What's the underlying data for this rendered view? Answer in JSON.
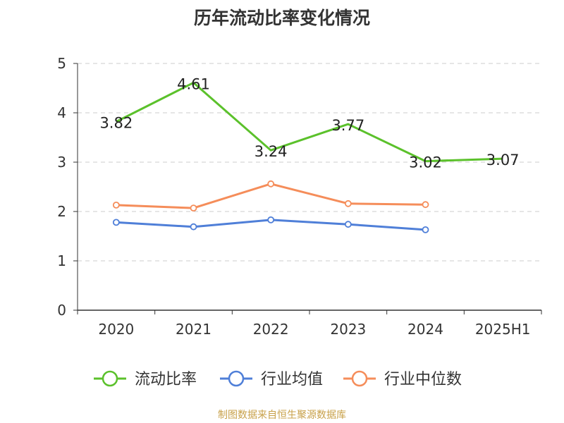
{
  "title": "历年流动比率变化情况",
  "source_note": "制图数据来自恒生聚源数据库",
  "chart_data": {
    "type": "line",
    "categories": [
      "2020",
      "2021",
      "2022",
      "2023",
      "2024",
      "2025H1"
    ],
    "ylim": [
      0,
      5
    ],
    "yticks": [
      0,
      1,
      2,
      3,
      4,
      5
    ],
    "grid": true,
    "legend_position": "bottom",
    "series": [
      {
        "name": "流动比率",
        "color": "#5bc12b",
        "values": [
          3.82,
          4.61,
          3.24,
          3.77,
          3.02,
          3.07
        ],
        "labels": [
          "3.82",
          "4.61",
          "3.24",
          "3.77",
          "3.02",
          "3.07"
        ]
      },
      {
        "name": "行业均值",
        "color": "#4f7fd8",
        "values": [
          1.78,
          1.69,
          1.83,
          1.74,
          1.63,
          null
        ]
      },
      {
        "name": "行业中位数",
        "color": "#f58d5a",
        "values": [
          2.13,
          2.07,
          2.56,
          2.16,
          2.14,
          null
        ]
      }
    ]
  }
}
